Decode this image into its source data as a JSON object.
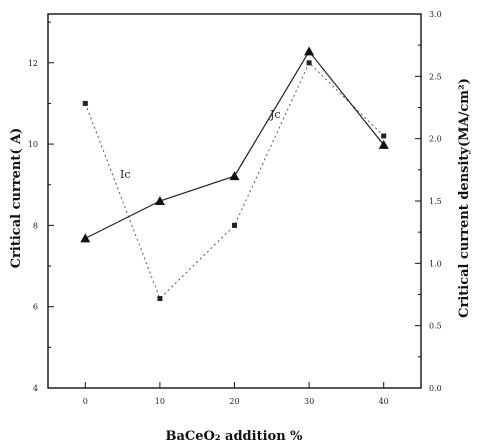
{
  "chart_data": {
    "type": "line",
    "xlabel": "BaCeO₂ addition %",
    "ylabel_left": "Critical current( A)",
    "ylabel_right": "Critical current density(MA/cm²)",
    "x_ticks": [
      "0",
      "10",
      "20",
      "30",
      "40"
    ],
    "y_left_ticks": [
      "4",
      "6",
      "8",
      "10",
      "12"
    ],
    "y_right_ticks": [
      "0.0",
      "0.5",
      "1.0",
      "1.5",
      "2.0",
      "2.5",
      "3.0"
    ],
    "xlim": [
      -5,
      45
    ],
    "ylim_left": [
      4,
      13.2
    ],
    "ylim_right": [
      0,
      3.0
    ],
    "grid": false,
    "series": [
      {
        "name": "Ic",
        "axis": "left",
        "marker": "square",
        "style": "dotted",
        "x": [
          0,
          10,
          20,
          30,
          40
        ],
        "y": [
          11.0,
          6.2,
          8.0,
          12.0,
          10.2
        ]
      },
      {
        "name": "Jc",
        "axis": "right",
        "marker": "triangle",
        "style": "solid",
        "x": [
          0,
          10,
          20,
          30,
          40
        ],
        "y": [
          1.2,
          1.5,
          1.7,
          2.7,
          1.95
        ]
      }
    ]
  }
}
